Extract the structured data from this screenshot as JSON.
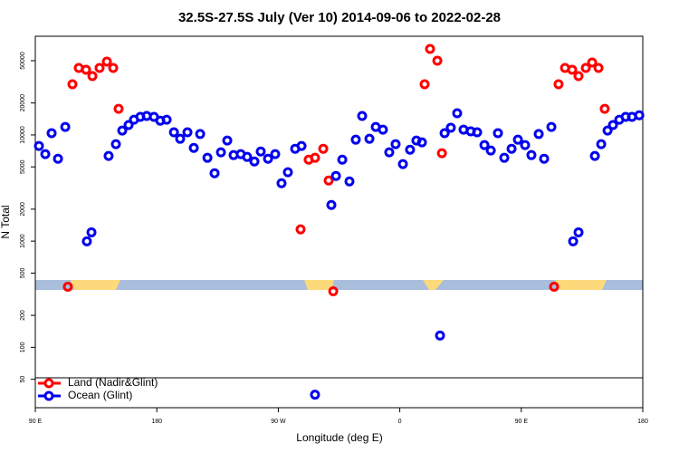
{
  "chart_data": {
    "type": "scatter",
    "title": "32.5S-27.5S July (Ver 10)   2014-09-06 to 2022-02-28",
    "xlabel": "Longitude (deg E)",
    "ylabel": "N Total",
    "xlim": [
      90,
      540
    ],
    "xticks": [
      {
        "value": 90,
        "label": "90 E"
      },
      180,
      {
        "value": 270,
        "label": "90 W"
      },
      {
        "value": 360,
        "label": "0"
      },
      {
        "value": 450,
        "label": "90 E"
      },
      {
        "value": 540,
        "label": "180"
      }
    ],
    "ylim": [
      27,
      85000
    ],
    "yscale": "log",
    "yticks": [
      50,
      100,
      200,
      500,
      1000,
      2000,
      5000,
      10000,
      20000,
      50000
    ],
    "legend": "lower left",
    "series": [
      {
        "name": "Land (Nadir&Glint)",
        "color": "#ff0000",
        "x": [
          114.1,
          117.5,
          122.2,
          127.6,
          132.3,
          137.6,
          143.0,
          147.7,
          151.7,
          286.5,
          292.5,
          297.2,
          303.3,
          307.3,
          310.7,
          378.4,
          382.4,
          387.8,
          391.2,
          474.3,
          477.6,
          482.4,
          487.7,
          492.4,
          497.8,
          502.5,
          507.2,
          511.8
        ],
        "values": [
          372,
          30000,
          42700,
          41100,
          35800,
          42700,
          49000,
          42700,
          17600,
          1290,
          5850,
          6090,
          7410,
          3720,
          337,
          30000,
          64600,
          50000,
          6720,
          372,
          30000,
          42700,
          41100,
          35800,
          42700,
          48100,
          42700,
          17600
        ]
      },
      {
        "name": "Ocean (Glint)",
        "color": "#0000ee",
        "x": [
          92.7,
          97.4,
          102.1,
          106.8,
          112.2,
          128.2,
          131.6,
          144.3,
          149.7,
          154.4,
          159.1,
          163.1,
          167.8,
          172.5,
          177.9,
          182.6,
          187.3,
          192.7,
          197.3,
          202.7,
          207.4,
          212.1,
          217.5,
          222.8,
          227.5,
          232.2,
          236.9,
          242.2,
          246.9,
          252.3,
          257.0,
          262.4,
          267.7,
          272.4,
          277.1,
          282.5,
          287.2,
          297.2,
          309.3,
          312.7,
          317.4,
          322.7,
          327.4,
          332.1,
          337.5,
          342.2,
          347.5,
          352.2,
          356.9,
          362.3,
          367.6,
          372.3,
          376.4,
          389.8,
          393.2,
          397.8,
          402.5,
          407.2,
          412.6,
          417.3,
          422.7,
          427.4,
          432.7,
          437.4,
          442.8,
          447.5,
          452.8,
          457.5,
          462.9,
          466.9,
          472.3,
          488.4,
          492.4,
          504.5,
          509.2,
          513.9,
          517.9,
          522.6,
          527.3,
          532.0,
          537.4
        ],
        "values": [
          7870,
          6590,
          10400,
          5970,
          11900,
          995,
          1210,
          6340,
          8180,
          11000,
          12400,
          13900,
          14800,
          15100,
          14800,
          13600,
          13900,
          10600,
          9200,
          10600,
          7550,
          10200,
          6090,
          4360,
          6860,
          8850,
          6460,
          6590,
          6210,
          5620,
          6980,
          5970,
          6590,
          3510,
          4450,
          7410,
          7870,
          35.8,
          2190,
          4110,
          5850,
          3650,
          9020,
          15100,
          9200,
          11900,
          11200,
          6860,
          8180,
          5310,
          7260,
          8850,
          8510,
          129,
          10400,
          11700,
          16000,
          11200,
          10800,
          10600,
          8020,
          7130,
          10400,
          6090,
          7410,
          9020,
          8020,
          6460,
          10200,
          5970,
          11900,
          995,
          1210,
          6340,
          8180,
          11000,
          12400,
          13900,
          14800,
          14800,
          15300
        ]
      }
    ]
  }
}
